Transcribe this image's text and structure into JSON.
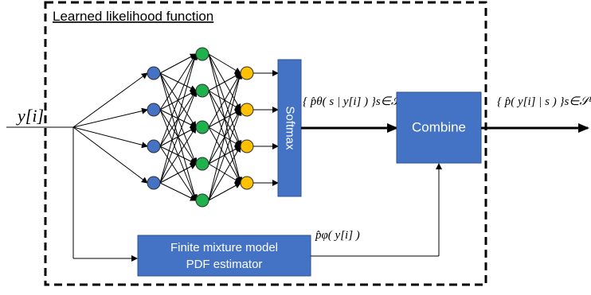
{
  "frame": {
    "title": "Learned likelihood function"
  },
  "signals": {
    "input": "y[i]",
    "nn_output": "{ p̂θ( s | y[i] ) }s∈𝒮ᴸ",
    "pdf_output": "p̂φ( y[i] )",
    "final_output": "{ p̂( y[i] | s ) }s∈𝒮ᴸ"
  },
  "blocks": {
    "softmax": "Softmax",
    "combine": "Combine",
    "pdf_line1": "Finite mixture model",
    "pdf_line2": "PDF estimator"
  },
  "network": {
    "layers": [
      4,
      5,
      4
    ],
    "layer_colors": [
      "#4472c4",
      "#1fb14c",
      "#ffc000"
    ]
  },
  "colors": {
    "block_fill": "#4472c4",
    "block_stroke": "#2f528f",
    "line": "#000000"
  }
}
